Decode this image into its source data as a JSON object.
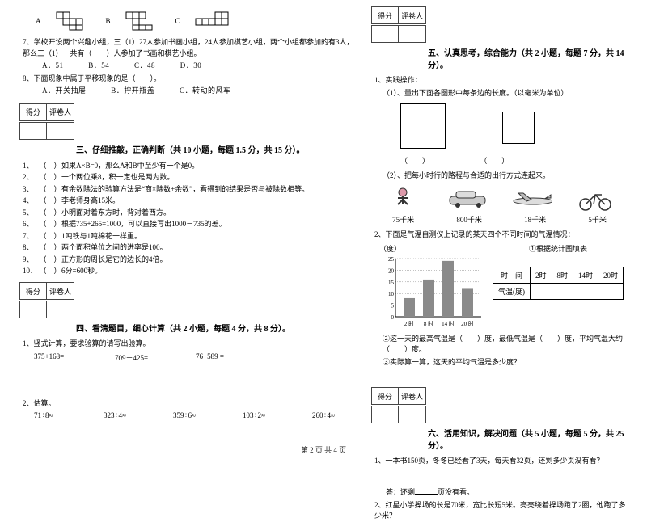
{
  "footer": "第 2 页 共 4 页",
  "left": {
    "shapes": {
      "a": "A",
      "b": "B",
      "c": "C"
    },
    "q7": {
      "text": "7、学校开设两个兴趣小组，三（1）27人参加书画小组，24人参加棋艺小组，两个小组都参加的有3人，那么三（1）一共有（　　）人参加了书画和棋艺小组。",
      "opts": {
        "a": "A．51",
        "b": "B．54",
        "c": "C．48",
        "d": "D．30"
      }
    },
    "q8": {
      "text": "8、下面现象中属于平移现象的是（　　）。",
      "opts": {
        "a": "A．开关抽屉",
        "b": "B．拧开瓶盖",
        "c": "C．转动的风车"
      }
    },
    "scorebox": {
      "c1": "得分",
      "c2": "评卷人"
    },
    "sec3_title": "三、仔细推敲，正确判断（共 10 小题，每题 1.5 分，共 15 分）。",
    "tf": [
      "如果A×B=0，那么A和B中至少有一个是0。",
      "一个两位乘8，积一定也是两为数。",
      "有余数除法的验算方法是“商×除数+余数”，看得到的结果是否与被除数相等。",
      "李老师身高15米。",
      "小明面对着东方时，背对着西方。",
      "根据735+265=1000，可以直接写出1000－735的差。",
      "1吨铁与1吨棉花一样重。",
      "两个面积单位之间的进率是100。",
      "正方形的周长是它的边长的4倍。",
      "6分=600秒。"
    ],
    "sec4_title": "四、看清题目，细心计算（共 2 小题，每题 4 分，共 8 分）。",
    "calc1": {
      "label": "1、竖式计算，要求验算的请写出验算。",
      "items": [
        "375+168=",
        "709－425=",
        "76+589 ="
      ]
    },
    "calc2": {
      "label": "2、估算。",
      "items": [
        "71÷8≈",
        "323÷4≈",
        "359÷6≈",
        "103÷2≈",
        "260÷4≈"
      ]
    }
  },
  "right": {
    "scorebox": {
      "c1": "得分",
      "c2": "评卷人"
    },
    "sec5_title": "五、认真思考，综合能力（共 2 小题，每题 7 分，共 14 分）。",
    "q1": {
      "label": "1、实践操作：",
      "sub1": "（1）、量出下面各图形中每条边的长度。（以毫米为单位）",
      "brk1": "（　　）",
      "brk2": "（　　）",
      "sub2": "（2）、把每小时行的路程与合适的出行方式连起来。"
    },
    "transport": {
      "labels": [
        "75千米",
        "800千米",
        "18千米",
        "5千米"
      ],
      "alts": [
        "walking-person-icon",
        "car-icon",
        "airplane-icon",
        "bicycle-icon"
      ]
    },
    "q2": "2、下面是气温自测仪上记录的某天四个不同时间的气温情况：",
    "chart": {
      "ylabel": "（度）",
      "caption": "①根据统计图填表",
      "yticks": [
        0,
        5,
        10,
        15,
        20,
        25
      ],
      "xticks": [
        "2 时",
        "8 时",
        "14 时",
        "20 时"
      ],
      "values": [
        8,
        16,
        24,
        12
      ],
      "bar_color": "#8a8a8a",
      "grid_color": "#888",
      "bg": "#ffffff"
    },
    "table": {
      "h1": "时　间",
      "t1": "2时",
      "t2": "8时",
      "t3": "14时",
      "t4": "20时",
      "h2": "气温(度)"
    },
    "subq2": "②这一天的最高气温是（　　）度，最低气温是（　　）度，平均气温大约（　　）度。",
    "subq3": "③实际算一算，这天的平均气温是多少度？",
    "sec6_title": "六、活用知识，解决问题（共 5 小题，每题 5 分，共 25 分）。",
    "p1": "1、一本书150页，冬冬已经看了3天，每天看32页，还剩多少页没有看？",
    "ans1a": "答：还剩",
    "ans1b": "页没有看。",
    "p2": "2、红星小学操场的长是70米，宽比长短5米。亮亮绕着操场跑了2圈，他跑了多少米？"
  }
}
